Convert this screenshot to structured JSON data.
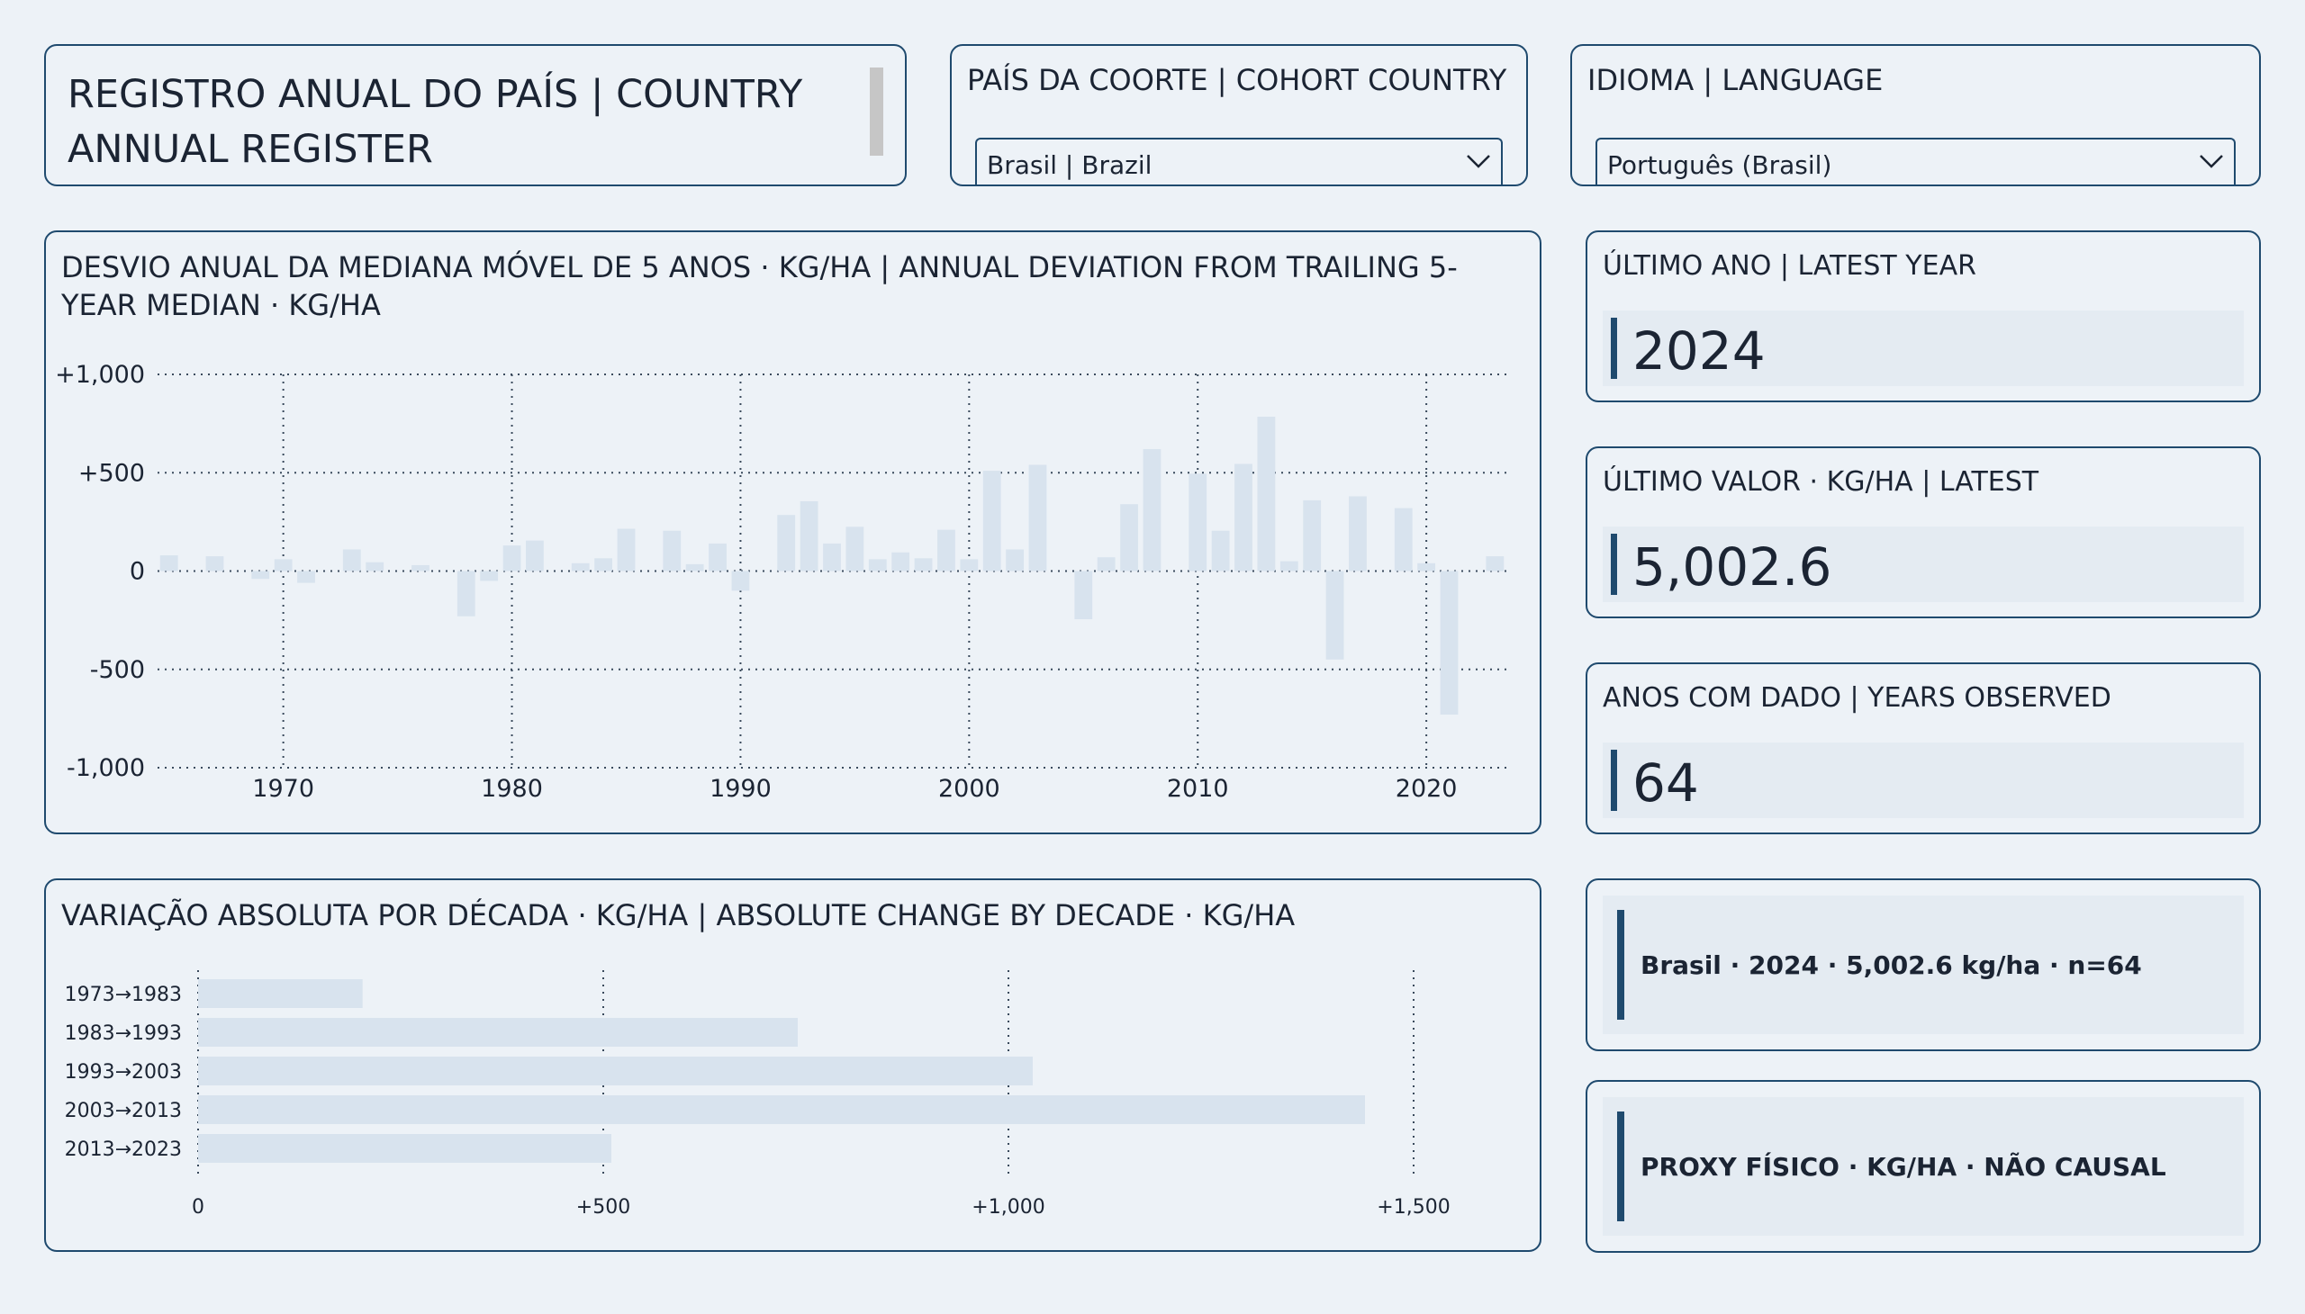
{
  "header": {
    "title": "REGISTRO ANUAL DO PAÍS | COUNTRY ANNUAL REGISTER"
  },
  "filters": {
    "country": {
      "label": "PAÍS DA COORTE | COHORT COUNTRY",
      "value": "Brasil | Brazil"
    },
    "language": {
      "label": "IDIOMA | LANGUAGE",
      "value": "Português (Brasil)"
    }
  },
  "kpis": {
    "latest_year": {
      "label": "ÚLTIMO ANO | LATEST YEAR",
      "value": "2024"
    },
    "latest_value": {
      "label": "ÚLTIMO VALOR · KG/HA | LATEST",
      "value": "5,002.6"
    },
    "years_observed": {
      "label": "ANOS COM DADO | YEARS OBSERVED",
      "value": "64"
    }
  },
  "notes": {
    "summary": "Brasil · 2024 · 5,002.6 kg/ha · n=64",
    "proxy": "PROXY FÍSICO · KG/HA · NÃO CAUSAL"
  },
  "colors": {
    "background": "#edf2f7",
    "border": "#1f4a6e",
    "bar": "#d8e3ee",
    "grid": "#3a4a5c",
    "text": "#1b2433"
  },
  "chart_data": [
    {
      "type": "bar",
      "title": "DESVIO ANUAL DA MEDIANA MÓVEL DE 5 ANOS · KG/HA | ANNUAL DEVIATION FROM TRAILING 5-YEAR MEDIAN · KG/HA",
      "x": [
        1965,
        1966,
        1967,
        1968,
        1969,
        1970,
        1971,
        1972,
        1973,
        1974,
        1975,
        1976,
        1977,
        1978,
        1979,
        1980,
        1981,
        1982,
        1983,
        1984,
        1985,
        1986,
        1987,
        1988,
        1989,
        1990,
        1991,
        1992,
        1993,
        1994,
        1995,
        1996,
        1997,
        1998,
        1999,
        2000,
        2001,
        2002,
        2003,
        2004,
        2005,
        2006,
        2007,
        2008,
        2009,
        2010,
        2011,
        2012,
        2013,
        2014,
        2015,
        2016,
        2017,
        2018,
        2019,
        2020,
        2021,
        2022,
        2023
      ],
      "values": [
        80,
        0,
        75,
        0,
        -40,
        60,
        -60,
        0,
        110,
        45,
        0,
        30,
        0,
        -230,
        -50,
        130,
        155,
        0,
        40,
        65,
        215,
        0,
        205,
        35,
        140,
        -100,
        0,
        285,
        355,
        140,
        225,
        60,
        95,
        65,
        210,
        60,
        510,
        110,
        540,
        0,
        -245,
        70,
        340,
        620,
        0,
        495,
        205,
        545,
        785,
        50,
        360,
        -450,
        380,
        0,
        320,
        40,
        -730,
        0,
        75
      ],
      "x_ticks": [
        1970,
        1980,
        1990,
        2000,
        2010,
        2020
      ],
      "x_tick_labels": [
        "1970",
        "1980",
        "1990",
        "2000",
        "2010",
        "2020"
      ],
      "y_ticks": [
        1000,
        500,
        0,
        -500,
        -1000
      ],
      "y_tick_labels": [
        "+1,000",
        "+500",
        "0",
        "-500",
        "-1,000"
      ],
      "xlim": [
        1964.5,
        2023.5
      ],
      "ylim": [
        -1000,
        1000
      ],
      "grid": true
    },
    {
      "type": "bar",
      "orientation": "horizontal",
      "title": "VARIAÇÃO ABSOLUTA POR DÉCADA · KG/HA | ABSOLUTE CHANGE BY DECADE · KG/HA",
      "categories": [
        "1973→1983",
        "1983→1993",
        "1993→2003",
        "2003→2013",
        "2013→2023"
      ],
      "values": [
        203,
        740,
        1030,
        1440,
        510
      ],
      "x_ticks": [
        0,
        500,
        1000,
        1500
      ],
      "x_tick_labels": [
        "0",
        "+500",
        "+1,000",
        "+1,500"
      ],
      "xlim": [
        0,
        1620
      ],
      "grid": true
    }
  ]
}
